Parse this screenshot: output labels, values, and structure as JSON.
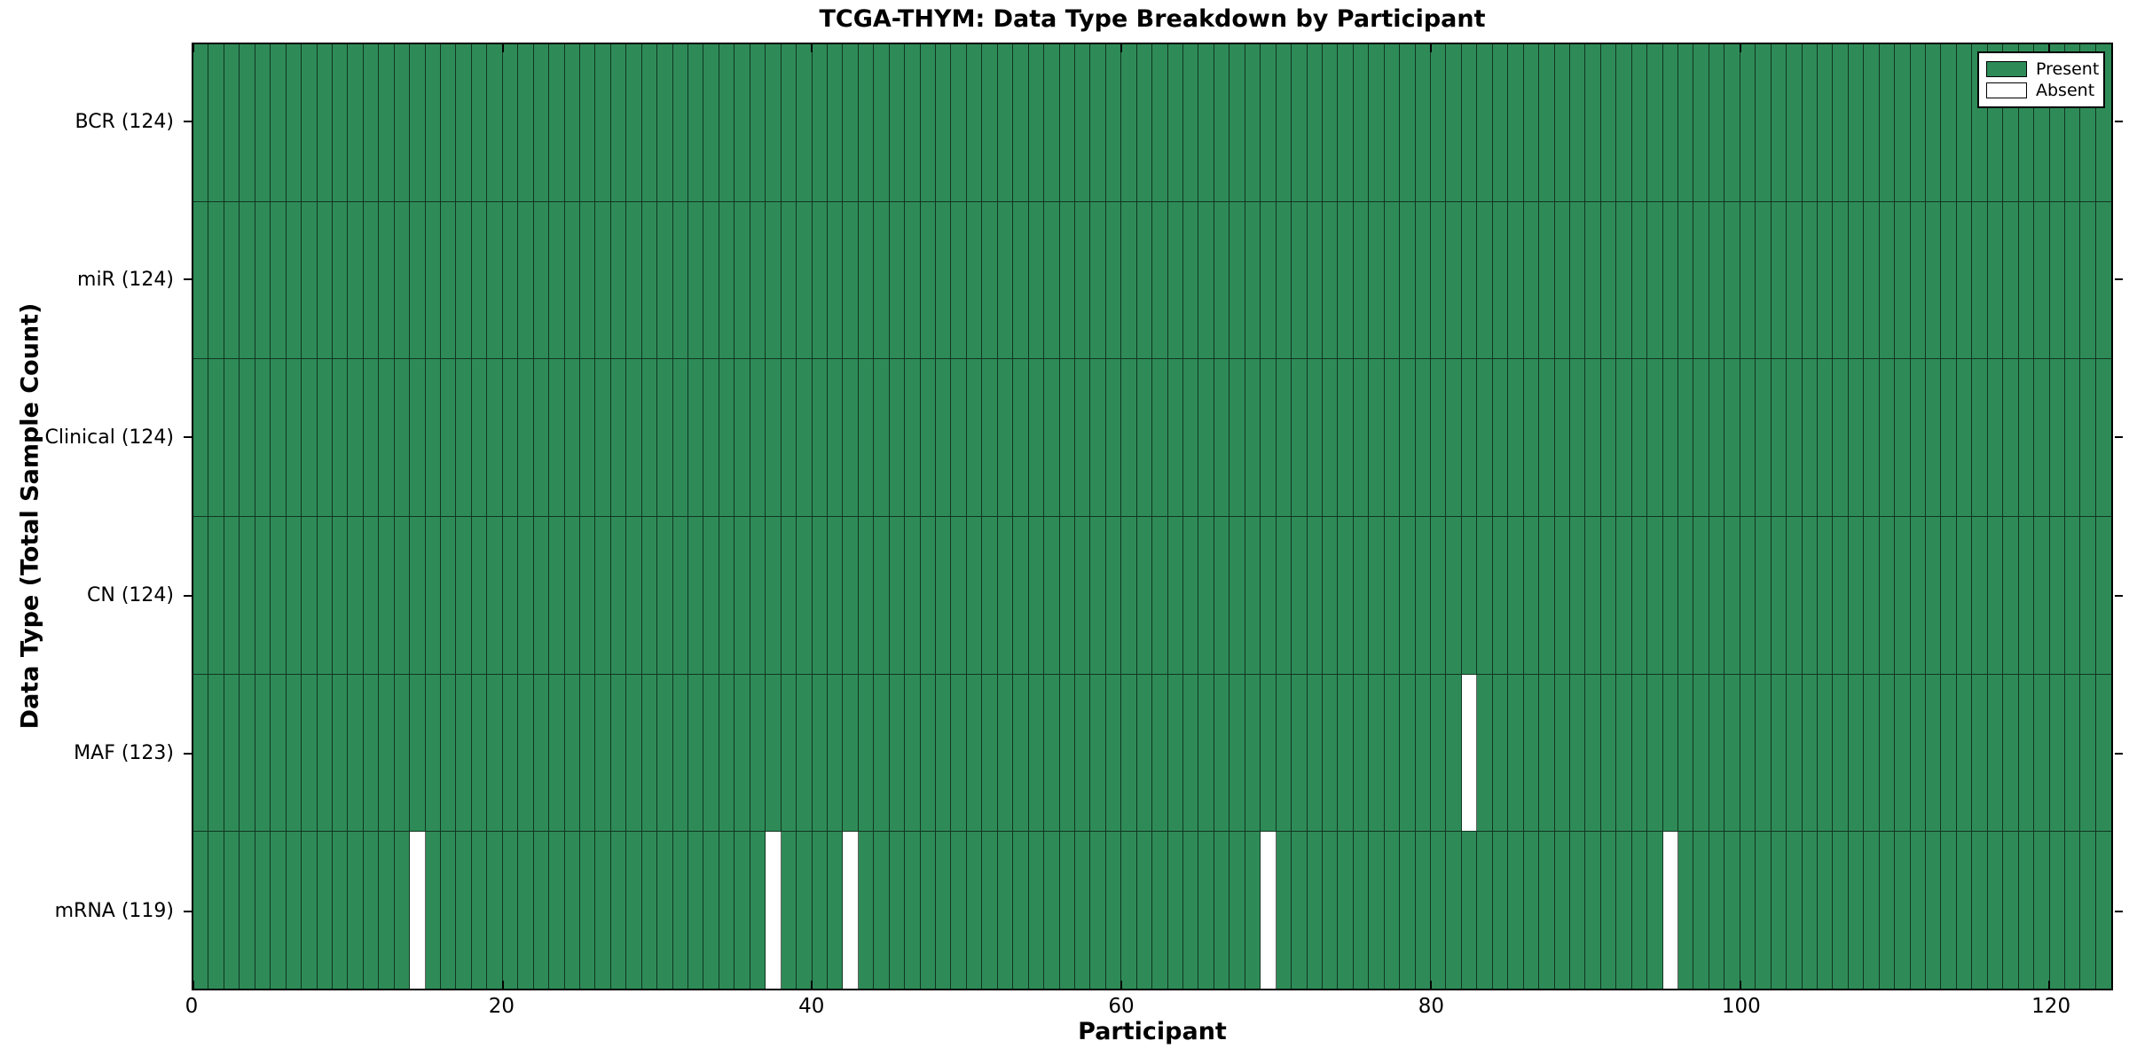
{
  "chart_data": {
    "type": "heatmap",
    "title": "TCGA-THYM: Data Type Breakdown by Participant",
    "xlabel": "Participant",
    "ylabel": "Data Type (Total Sample Count)",
    "x_range": [
      0,
      124
    ],
    "x_ticks": [
      0,
      20,
      40,
      60,
      80,
      100,
      120
    ],
    "n_participants": 124,
    "rows": [
      {
        "data_type": "BCR",
        "label": "BCR (124)",
        "present_count": 124,
        "absent_participants": []
      },
      {
        "data_type": "miR",
        "label": "miR (124)",
        "present_count": 124,
        "absent_participants": []
      },
      {
        "data_type": "Clinical",
        "label": "Clinical (124)",
        "present_count": 124,
        "absent_participants": []
      },
      {
        "data_type": "CN",
        "label": "CN (124)",
        "present_count": 124,
        "absent_participants": []
      },
      {
        "data_type": "MAF",
        "label": "MAF (123)",
        "present_count": 123,
        "absent_participants": [
          82
        ]
      },
      {
        "data_type": "mRNA",
        "label": "mRNA (119)",
        "present_count": 119,
        "absent_participants": [
          14,
          37,
          42,
          69,
          95
        ]
      }
    ],
    "legend": [
      {
        "label": "Present",
        "color": "#2e8b57"
      },
      {
        "label": "Absent",
        "color": "#ffffff"
      }
    ],
    "colors": {
      "present": "#2e8b57",
      "absent": "#ffffff",
      "cell_border": "#000000",
      "axes_border": "#000000",
      "background": "#ffffff"
    },
    "grid": false,
    "legend_position": "upper right"
  }
}
